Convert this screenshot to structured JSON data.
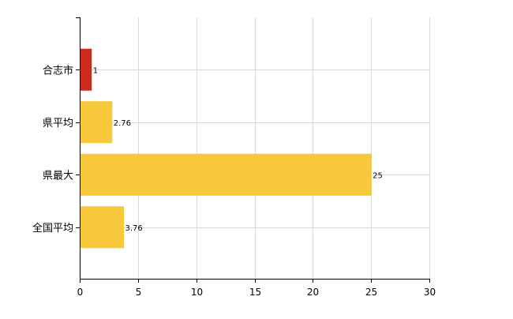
{
  "chart_data": {
    "type": "bar",
    "orientation": "horizontal",
    "categories": [
      "合志市",
      "県平均",
      "県最大",
      "全国平均"
    ],
    "values": [
      1,
      2.76,
      25,
      3.76
    ],
    "data_labels": [
      "1",
      "2.76",
      "25",
      "3.76"
    ],
    "colors": [
      "#cc2a1e",
      "#f7c83a",
      "#f7c83a",
      "#f7c83a"
    ],
    "xlim": [
      0,
      30
    ],
    "x_ticks": [
      0,
      5,
      10,
      15,
      20,
      25,
      30
    ],
    "x_tick_labels": [
      "0",
      "5",
      "10",
      "15",
      "20",
      "25",
      "30"
    ],
    "grid": true,
    "legend": "none",
    "title": "",
    "xlabel": "",
    "ylabel": ""
  }
}
